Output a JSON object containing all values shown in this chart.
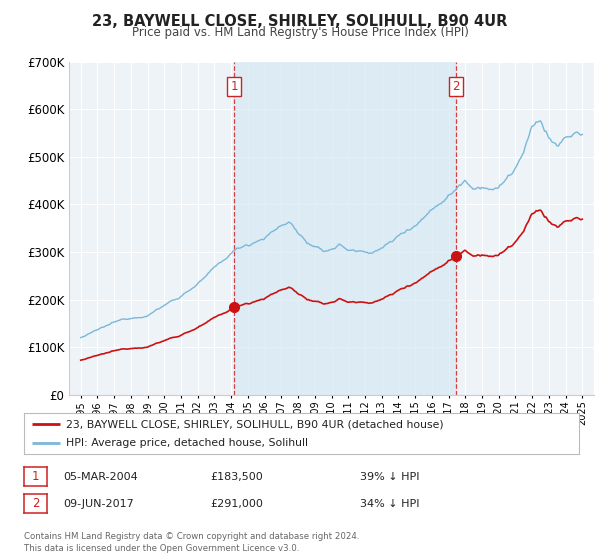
{
  "title": "23, BAYWELL CLOSE, SHIRLEY, SOLIHULL, B90 4UR",
  "subtitle": "Price paid vs. HM Land Registry's House Price Index (HPI)",
  "legend_entry1": "23, BAYWELL CLOSE, SHIRLEY, SOLIHULL, B90 4UR (detached house)",
  "legend_entry2": "HPI: Average price, detached house, Solihull",
  "sale1_date": "05-MAR-2004",
  "sale1_price": 183500,
  "sale1_label": "39% ↓ HPI",
  "sale2_date": "09-JUN-2017",
  "sale2_price": 291000,
  "sale2_label": "34% ↓ HPI",
  "sale1_year": 2004.17,
  "sale2_year": 2017.44,
  "hpi_color": "#7ab8d9",
  "hpi_fill_color": "#d6e9f5",
  "price_color": "#cc1111",
  "vline_color": "#cc2222",
  "bg_color": "#eef3f8",
  "grid_color": "#ffffff",
  "ylim": [
    0,
    700000
  ],
  "footer": "Contains HM Land Registry data © Crown copyright and database right 2024.\nThis data is licensed under the Open Government Licence v3.0."
}
